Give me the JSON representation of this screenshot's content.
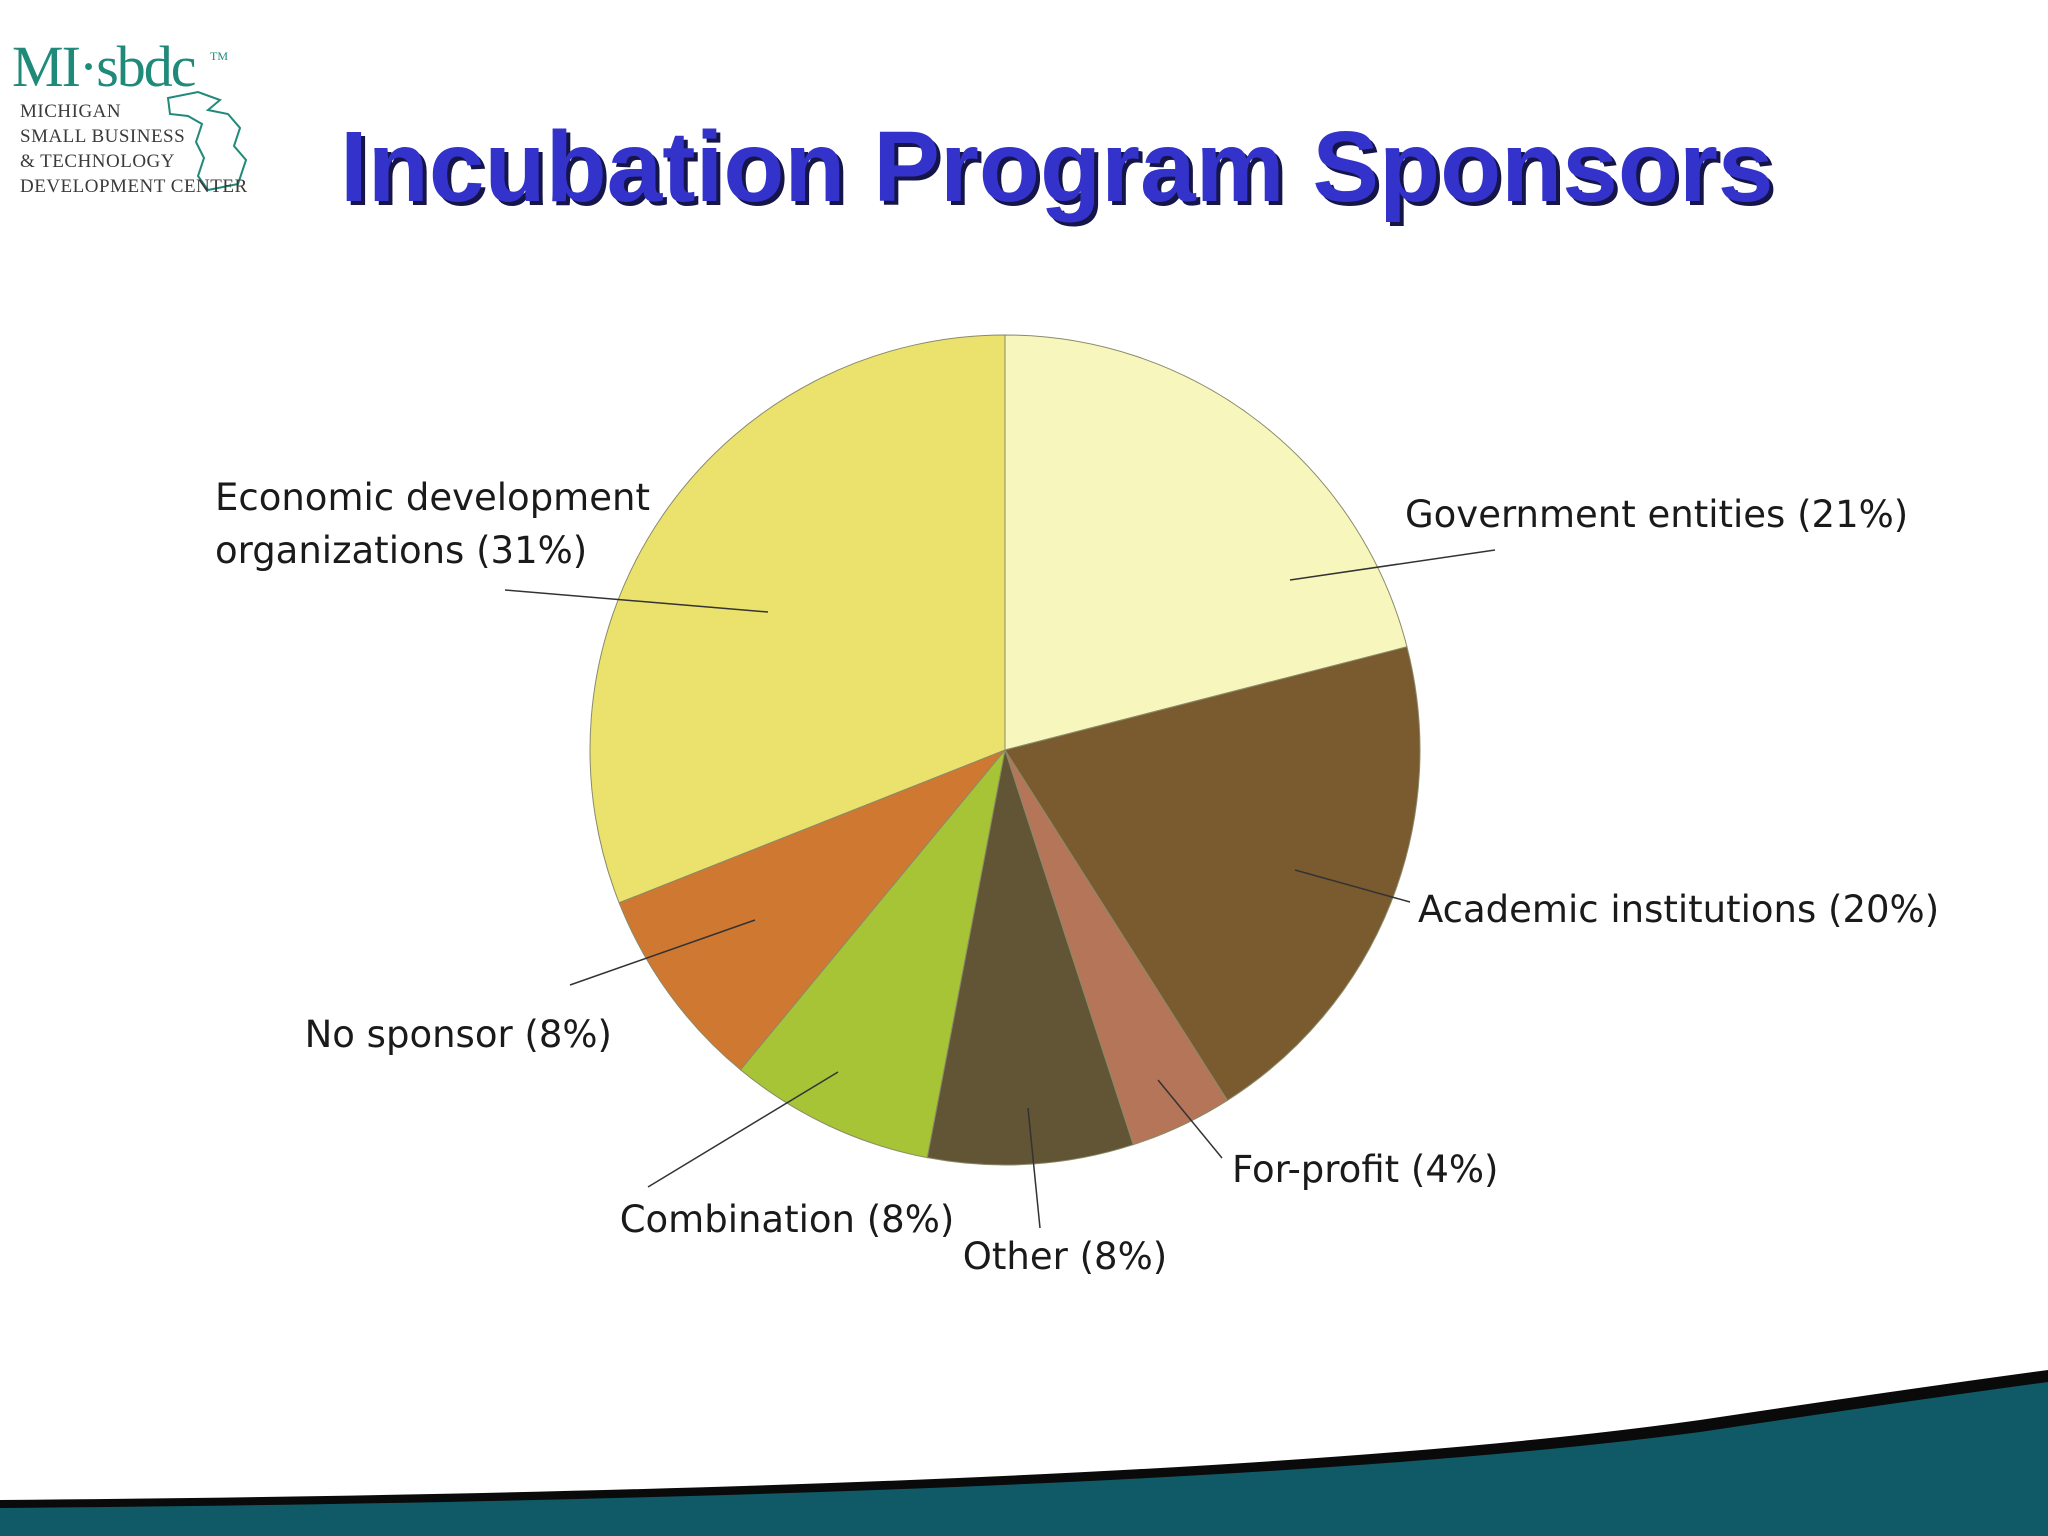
{
  "logo": {
    "mark": "MI·sbdc",
    "trademark": "TM",
    "lines": [
      "MICHIGAN",
      "SMALL BUSINESS",
      "& TECHNOLOGY",
      "DEVELOPMENT CENTER"
    ],
    "icon": "michigan-outline-icon",
    "color": "#1f8a7a"
  },
  "title": "Incubation Program Sponsors",
  "chart_data": {
    "type": "pie",
    "title": "Incubation Program Sponsors",
    "start_angle_deg": 0,
    "direction": "clockwise",
    "slices": [
      {
        "label": "Government entities (21%)",
        "value": 21,
        "color": "#f7f7bd"
      },
      {
        "label": "Academic institutions (20%)",
        "value": 20,
        "color": "#7a5a2f"
      },
      {
        "label": "For-profit (4%)",
        "value": 4,
        "color": "#b57558"
      },
      {
        "label": "Other (8%)",
        "value": 8,
        "color": "#615535"
      },
      {
        "label": "Combination (8%)",
        "value": 8,
        "color": "#a6c436"
      },
      {
        "label": "No sponsor (8%)",
        "value": 8,
        "color": "#cf7832"
      },
      {
        "label": "Economic development organizations (31%)",
        "value": 31,
        "color": "#ebe26d",
        "label_lines": [
          "Economic development",
          "organizations (31%)"
        ]
      }
    ]
  },
  "footer": {
    "color": "#0f5a66"
  }
}
